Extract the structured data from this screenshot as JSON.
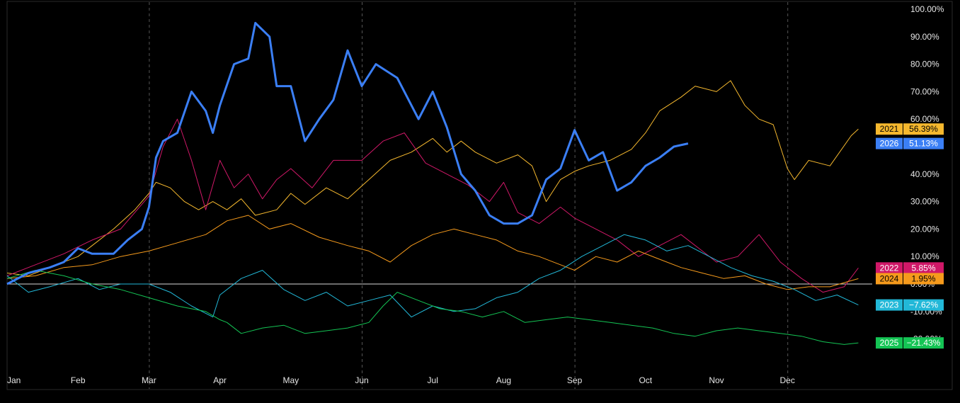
{
  "chart_data": {
    "type": "line",
    "title": "",
    "xlabel": "",
    "ylabel": "",
    "x_ticks": [
      "Jan",
      "Feb",
      "Mar",
      "Apr",
      "May",
      "Jun",
      "Jul",
      "Aug",
      "Sep",
      "Oct",
      "Nov",
      "Dec"
    ],
    "y_ticks": [
      "100.00%",
      "90.00%",
      "80.00%",
      "70.00%",
      "60.00%",
      "40.00%",
      "30.00%",
      "20.00%",
      "10.00%",
      "0.00%",
      "-10.00%",
      "-20.00%"
    ],
    "ylim": [
      -26,
      100
    ],
    "x_unit": "month (0 = Jan 1, 12 = Dec 31)",
    "vertical_gridlines": [
      "Mar",
      "Jun",
      "Sep",
      "Dec"
    ],
    "baseline_value": 0,
    "series": [
      {
        "name": "2021",
        "color": "#f5b82e",
        "last_value_label": "56.39%",
        "points": [
          [
            0,
            4
          ],
          [
            0.3,
            3
          ],
          [
            0.6,
            6
          ],
          [
            1,
            10
          ],
          [
            1.2,
            14
          ],
          [
            1.5,
            20
          ],
          [
            1.8,
            27
          ],
          [
            2.0,
            33
          ],
          [
            2.1,
            37
          ],
          [
            2.3,
            35
          ],
          [
            2.5,
            30
          ],
          [
            2.7,
            27
          ],
          [
            2.9,
            30
          ],
          [
            3.1,
            27
          ],
          [
            3.3,
            31
          ],
          [
            3.5,
            25
          ],
          [
            3.8,
            27
          ],
          [
            4.0,
            33
          ],
          [
            4.2,
            29
          ],
          [
            4.5,
            35
          ],
          [
            4.8,
            31
          ],
          [
            5.1,
            38
          ],
          [
            5.4,
            45
          ],
          [
            5.7,
            48
          ],
          [
            6.0,
            53
          ],
          [
            6.2,
            48
          ],
          [
            6.4,
            52
          ],
          [
            6.6,
            48
          ],
          [
            6.9,
            44
          ],
          [
            7.2,
            47
          ],
          [
            7.4,
            43
          ],
          [
            7.6,
            30
          ],
          [
            7.8,
            38
          ],
          [
            8.0,
            41
          ],
          [
            8.2,
            43
          ],
          [
            8.5,
            45
          ],
          [
            8.8,
            49
          ],
          [
            9.0,
            55
          ],
          [
            9.2,
            63
          ],
          [
            9.5,
            68
          ],
          [
            9.7,
            72
          ],
          [
            10.0,
            70
          ],
          [
            10.2,
            74
          ],
          [
            10.4,
            65
          ],
          [
            10.6,
            60
          ],
          [
            10.8,
            58
          ],
          [
            11.0,
            42
          ],
          [
            11.1,
            38
          ],
          [
            11.3,
            45
          ],
          [
            11.6,
            43
          ],
          [
            11.9,
            54
          ],
          [
            12.0,
            56.39
          ]
        ]
      },
      {
        "name": "2026",
        "color": "#3b7ff5",
        "last_value_label": "51.13%",
        "points": [
          [
            0,
            0
          ],
          [
            0.3,
            4
          ],
          [
            0.6,
            6
          ],
          [
            0.8,
            8
          ],
          [
            1.0,
            13
          ],
          [
            1.2,
            11
          ],
          [
            1.5,
            11
          ],
          [
            1.7,
            16
          ],
          [
            1.9,
            20
          ],
          [
            2.0,
            28
          ],
          [
            2.1,
            46
          ],
          [
            2.2,
            52
          ],
          [
            2.4,
            55
          ],
          [
            2.6,
            70
          ],
          [
            2.8,
            63
          ],
          [
            2.9,
            55
          ],
          [
            3.0,
            65
          ],
          [
            3.2,
            80
          ],
          [
            3.4,
            82
          ],
          [
            3.5,
            95
          ],
          [
            3.7,
            90
          ],
          [
            3.8,
            72
          ],
          [
            4.0,
            72
          ],
          [
            4.2,
            52
          ],
          [
            4.4,
            60
          ],
          [
            4.6,
            67
          ],
          [
            4.8,
            85
          ],
          [
            5.0,
            72
          ],
          [
            5.2,
            80
          ],
          [
            5.5,
            75
          ],
          [
            5.8,
            60
          ],
          [
            6.0,
            70
          ],
          [
            6.2,
            57
          ],
          [
            6.4,
            40
          ],
          [
            6.6,
            34
          ],
          [
            6.8,
            25
          ],
          [
            7.0,
            22
          ],
          [
            7.2,
            22
          ],
          [
            7.4,
            25
          ],
          [
            7.6,
            38
          ],
          [
            7.8,
            42
          ],
          [
            8.0,
            56
          ],
          [
            8.2,
            45
          ],
          [
            8.4,
            48
          ],
          [
            8.6,
            34
          ],
          [
            8.8,
            37
          ],
          [
            9.0,
            43
          ],
          [
            9.2,
            46
          ],
          [
            9.4,
            50
          ],
          [
            9.6,
            51.13
          ]
        ]
      },
      {
        "name": "2022",
        "color": "#d01868",
        "last_value_label": "5.85%",
        "points": [
          [
            0,
            3
          ],
          [
            0.4,
            7
          ],
          [
            0.8,
            11
          ],
          [
            1.2,
            16
          ],
          [
            1.6,
            20
          ],
          [
            2.0,
            32
          ],
          [
            2.2,
            50
          ],
          [
            2.4,
            60
          ],
          [
            2.6,
            45
          ],
          [
            2.8,
            27
          ],
          [
            3.0,
            45
          ],
          [
            3.2,
            35
          ],
          [
            3.4,
            40
          ],
          [
            3.6,
            31
          ],
          [
            3.8,
            38
          ],
          [
            4.0,
            42
          ],
          [
            4.3,
            35
          ],
          [
            4.6,
            45
          ],
          [
            5.0,
            45
          ],
          [
            5.3,
            52
          ],
          [
            5.6,
            55
          ],
          [
            5.9,
            44
          ],
          [
            6.2,
            40
          ],
          [
            6.5,
            36
          ],
          [
            6.8,
            30
          ],
          [
            7.0,
            37
          ],
          [
            7.2,
            26
          ],
          [
            7.5,
            22
          ],
          [
            7.8,
            28
          ],
          [
            8.0,
            24
          ],
          [
            8.3,
            20
          ],
          [
            8.6,
            16
          ],
          [
            8.9,
            10
          ],
          [
            9.2,
            14
          ],
          [
            9.5,
            18
          ],
          [
            9.8,
            12
          ],
          [
            10.0,
            8
          ],
          [
            10.3,
            10
          ],
          [
            10.6,
            18
          ],
          [
            10.9,
            8
          ],
          [
            11.2,
            2
          ],
          [
            11.5,
            -3
          ],
          [
            11.8,
            -1
          ],
          [
            12.0,
            5.85
          ]
        ]
      },
      {
        "name": "2024",
        "color": "#f59a1c",
        "last_value_label": "1.95%",
        "points": [
          [
            0,
            2
          ],
          [
            0.4,
            3
          ],
          [
            0.8,
            6
          ],
          [
            1.2,
            7
          ],
          [
            1.6,
            10
          ],
          [
            2.0,
            12
          ],
          [
            2.4,
            15
          ],
          [
            2.8,
            18
          ],
          [
            3.1,
            23
          ],
          [
            3.4,
            25
          ],
          [
            3.7,
            20
          ],
          [
            4.0,
            22
          ],
          [
            4.4,
            17
          ],
          [
            4.8,
            14
          ],
          [
            5.1,
            12
          ],
          [
            5.4,
            8
          ],
          [
            5.7,
            14
          ],
          [
            6.0,
            18
          ],
          [
            6.3,
            20
          ],
          [
            6.6,
            18
          ],
          [
            6.9,
            16
          ],
          [
            7.2,
            12
          ],
          [
            7.5,
            10
          ],
          [
            7.8,
            7
          ],
          [
            8.0,
            5
          ],
          [
            8.3,
            10
          ],
          [
            8.6,
            8
          ],
          [
            8.9,
            12
          ],
          [
            9.2,
            9
          ],
          [
            9.5,
            6
          ],
          [
            9.8,
            4
          ],
          [
            10.1,
            2
          ],
          [
            10.4,
            3
          ],
          [
            10.7,
            0
          ],
          [
            11.0,
            -2
          ],
          [
            11.3,
            -1
          ],
          [
            11.6,
            -1
          ],
          [
            12.0,
            1.95
          ]
        ]
      },
      {
        "name": "2023",
        "color": "#22b8d8",
        "last_value_label": "−7.62%",
        "points": [
          [
            0,
            3
          ],
          [
            0.3,
            -3
          ],
          [
            0.6,
            -1
          ],
          [
            1.0,
            2
          ],
          [
            1.3,
            -2
          ],
          [
            1.6,
            0
          ],
          [
            2.0,
            0
          ],
          [
            2.3,
            -3
          ],
          [
            2.6,
            -8
          ],
          [
            2.9,
            -12
          ],
          [
            3.0,
            -4
          ],
          [
            3.3,
            2
          ],
          [
            3.6,
            5
          ],
          [
            3.9,
            -2
          ],
          [
            4.2,
            -6
          ],
          [
            4.5,
            -3
          ],
          [
            4.8,
            -8
          ],
          [
            5.1,
            -6
          ],
          [
            5.4,
            -4
          ],
          [
            5.7,
            -12
          ],
          [
            6.0,
            -8
          ],
          [
            6.3,
            -10
          ],
          [
            6.6,
            -9
          ],
          [
            6.9,
            -5
          ],
          [
            7.2,
            -3
          ],
          [
            7.5,
            2
          ],
          [
            7.8,
            5
          ],
          [
            8.1,
            10
          ],
          [
            8.4,
            14
          ],
          [
            8.7,
            18
          ],
          [
            9.0,
            16
          ],
          [
            9.3,
            12
          ],
          [
            9.6,
            14
          ],
          [
            9.9,
            10
          ],
          [
            10.2,
            6
          ],
          [
            10.5,
            3
          ],
          [
            10.8,
            1
          ],
          [
            11.1,
            -2
          ],
          [
            11.4,
            -6
          ],
          [
            11.7,
            -4
          ],
          [
            12.0,
            -7.62
          ]
        ]
      },
      {
        "name": "2025",
        "color": "#14c454",
        "last_value_label": "−21.43%",
        "points": [
          [
            0,
            2
          ],
          [
            0.4,
            5
          ],
          [
            0.8,
            3
          ],
          [
            1.2,
            0
          ],
          [
            1.6,
            -2
          ],
          [
            2.0,
            -5
          ],
          [
            2.4,
            -8
          ],
          [
            2.8,
            -10
          ],
          [
            3.0,
            -13
          ],
          [
            3.1,
            -14
          ],
          [
            3.3,
            -18
          ],
          [
            3.6,
            -16
          ],
          [
            3.9,
            -15
          ],
          [
            4.2,
            -18
          ],
          [
            4.5,
            -17
          ],
          [
            4.8,
            -16
          ],
          [
            5.1,
            -14
          ],
          [
            5.3,
            -8
          ],
          [
            5.5,
            -3
          ],
          [
            5.8,
            -6
          ],
          [
            6.1,
            -9
          ],
          [
            6.4,
            -10
          ],
          [
            6.7,
            -12
          ],
          [
            7.0,
            -10
          ],
          [
            7.3,
            -14
          ],
          [
            7.6,
            -13
          ],
          [
            7.9,
            -12
          ],
          [
            8.2,
            -13
          ],
          [
            8.5,
            -14
          ],
          [
            8.8,
            -15
          ],
          [
            9.1,
            -16
          ],
          [
            9.4,
            -18
          ],
          [
            9.7,
            -19
          ],
          [
            10.0,
            -17
          ],
          [
            10.3,
            -16
          ],
          [
            10.6,
            -17
          ],
          [
            10.9,
            -18
          ],
          [
            11.2,
            -19
          ],
          [
            11.5,
            -21
          ],
          [
            11.8,
            -22
          ],
          [
            12.0,
            -21.43
          ]
        ]
      }
    ]
  }
}
